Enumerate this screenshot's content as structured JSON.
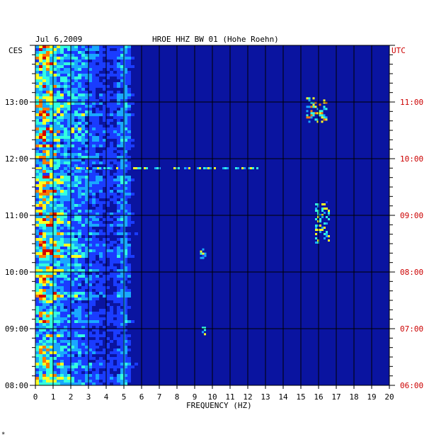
{
  "header": {
    "date": "Jul 6,2009",
    "station": "HROE HHZ BW 01 (Hohe Roehn)"
  },
  "left_axis_label": "CES",
  "right_axis_label": "UTC",
  "footer_mark": "*",
  "colors": {
    "background": "#0a14a0",
    "grid": "#000000",
    "utc_text": "#cc0000",
    "label_text": "#000000"
  },
  "chart_data": {
    "type": "heatmap",
    "title": "HROE HHZ BW 01 (Hohe Roehn)",
    "xlabel": "FREQUENCY (HZ)",
    "x_ticks": [
      "0",
      "1",
      "2",
      "3",
      "4",
      "5",
      "6",
      "7",
      "8",
      "9",
      "10",
      "11",
      "12",
      "13",
      "14",
      "15",
      "16",
      "17",
      "18",
      "19",
      "20"
    ],
    "xlim": [
      0,
      20
    ],
    "left_time_ticks": [
      "13:00",
      "12:00",
      "11:00",
      "10:00",
      "09:00",
      "08:00"
    ],
    "right_time_ticks": [
      "11:00",
      "10:00",
      "09:00",
      "08:00",
      "07:00",
      "06:00"
    ],
    "time_range_ces": [
      "08:00",
      "14:00"
    ],
    "grid": true,
    "colormap": [
      "#0a14a0",
      "#1a3cff",
      "#19a8ff",
      "#33ffe0",
      "#ffff22",
      "#ff7a00",
      "#d40000"
    ],
    "energy_profile": {
      "freq_hz": [
        0,
        0.5,
        1,
        1.5,
        2,
        2.5,
        3,
        3.5,
        4,
        4.5,
        5,
        5.5,
        6,
        8,
        10,
        12,
        14,
        16,
        18,
        20
      ],
      "level": [
        0.6,
        0.95,
        0.75,
        0.55,
        0.5,
        0.5,
        0.4,
        0.3,
        0.25,
        0.25,
        0.5,
        0.15,
        0.08,
        0.05,
        0.05,
        0.04,
        0.04,
        0.04,
        0.03,
        0.03
      ]
    },
    "bright_lines_hz": [
      5.0
    ],
    "features": [
      {
        "freq_hz": [
          15.3,
          16.5
        ],
        "time_ces": [
          "12:40",
          "13:05"
        ],
        "level": 0.6
      },
      {
        "freq_hz": [
          15.8,
          16.6
        ],
        "time_ces": [
          "10:30",
          "11:15"
        ],
        "level": 0.55
      },
      {
        "freq_hz": [
          9.3,
          9.6
        ],
        "time_ces": [
          "10:15",
          "10:25"
        ],
        "level": 0.5
      },
      {
        "freq_hz": [
          0,
          12.5
        ],
        "time_ces": [
          "11:50",
          "11:51"
        ],
        "level": 0.55
      },
      {
        "freq_hz": [
          9.4,
          9.6
        ],
        "time_ces": [
          "08:55",
          "09:02"
        ],
        "level": 0.5
      }
    ]
  }
}
